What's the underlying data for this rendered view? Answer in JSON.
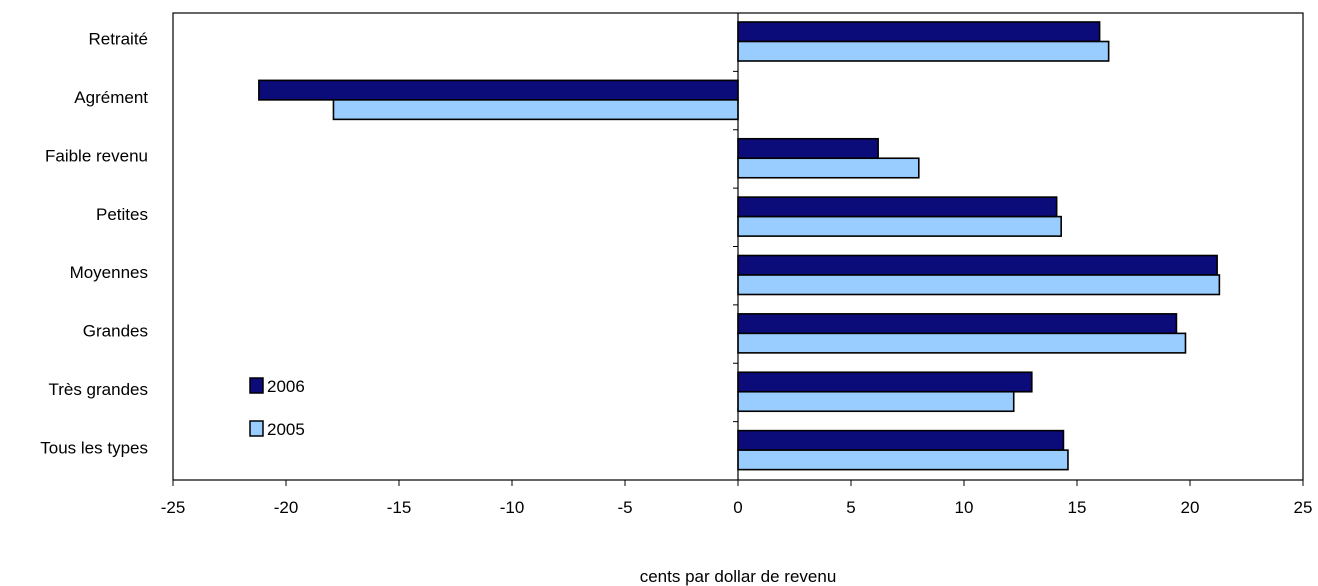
{
  "chart_data": {
    "type": "bar",
    "orientation": "horizontal",
    "title": "",
    "xlabel": "cents par dollar de revenu",
    "ylabel": "",
    "categories": [
      "Retraité",
      "Agrément",
      "Faible revenu",
      "Petites",
      "Moyennes",
      "Grandes",
      "Très grandes",
      "Tous les types"
    ],
    "series": [
      {
        "name": "2006",
        "color": "#0b0b7a",
        "values": [
          16.0,
          -21.2,
          6.2,
          14.1,
          21.2,
          19.4,
          13.0,
          14.4
        ]
      },
      {
        "name": "2005",
        "color": "#99ccff",
        "values": [
          16.4,
          -17.9,
          8.0,
          14.3,
          21.3,
          19.8,
          12.2,
          14.6
        ]
      }
    ],
    "xlim": [
      -25,
      25
    ],
    "xticks": [
      "-25",
      "-20",
      "-15",
      "-10",
      "-5",
      "0",
      "5",
      "10",
      "15",
      "20",
      "25"
    ],
    "grid": false,
    "legend_position": "bottom-left inside plot"
  }
}
